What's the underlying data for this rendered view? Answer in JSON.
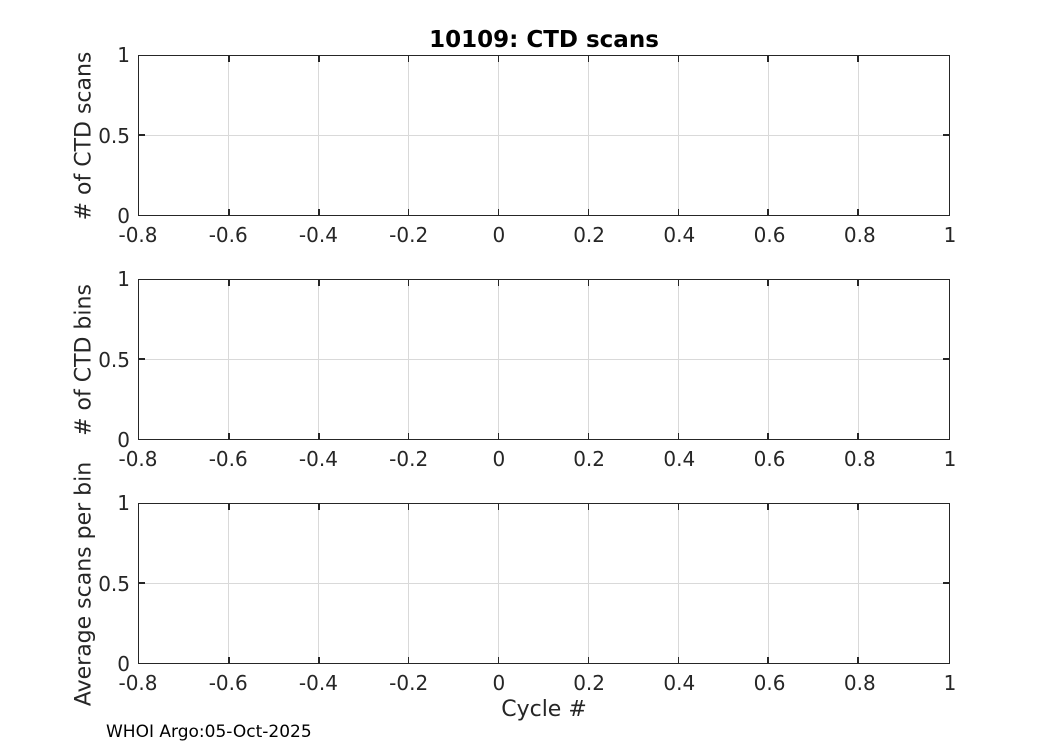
{
  "figure": {
    "title": "10109: CTD scans",
    "xlabel": "Cycle #",
    "footer": "WHOI Argo:05-Oct-2025",
    "colors": {
      "background": "#ffffff",
      "axis": "#262626",
      "grid": "#d9d9d9",
      "title": "#000000"
    }
  },
  "chart_data": [
    {
      "type": "line",
      "title": "10109: CTD scans",
      "ylabel": "# of CTD scans",
      "xlabel": "",
      "xlim": [
        -0.8,
        1
      ],
      "ylim": [
        0,
        1
      ],
      "xtick_values": [
        -0.8,
        -0.6,
        -0.4,
        -0.2,
        0,
        0.2,
        0.4,
        0.6,
        0.8,
        1
      ],
      "xtick_labels": [
        "-0.8",
        "-0.6",
        "-0.4",
        "-0.2",
        "0",
        "0.2",
        "0.4",
        "0.6",
        "0.8",
        "1"
      ],
      "ytick_values": [
        0,
        0.5,
        1
      ],
      "ytick_labels": [
        "0",
        "0.5",
        "1"
      ],
      "grid": true,
      "legend": null,
      "series": []
    },
    {
      "type": "line",
      "title": "",
      "ylabel": "# of CTD bins",
      "xlabel": "",
      "xlim": [
        -0.8,
        1
      ],
      "ylim": [
        0,
        1
      ],
      "xtick_values": [
        -0.8,
        -0.6,
        -0.4,
        -0.2,
        0,
        0.2,
        0.4,
        0.6,
        0.8,
        1
      ],
      "xtick_labels": [
        "-0.8",
        "-0.6",
        "-0.4",
        "-0.2",
        "0",
        "0.2",
        "0.4",
        "0.6",
        "0.8",
        "1"
      ],
      "ytick_values": [
        0,
        0.5,
        1
      ],
      "ytick_labels": [
        "0",
        "0.5",
        "1"
      ],
      "grid": true,
      "legend": null,
      "series": []
    },
    {
      "type": "line",
      "title": "",
      "ylabel": "Average scans per bin",
      "xlabel": "Cycle #",
      "xlim": [
        -0.8,
        1
      ],
      "ylim": [
        0,
        1
      ],
      "xtick_values": [
        -0.8,
        -0.6,
        -0.4,
        -0.2,
        0,
        0.2,
        0.4,
        0.6,
        0.8,
        1
      ],
      "xtick_labels": [
        "-0.8",
        "-0.6",
        "-0.4",
        "-0.2",
        "0",
        "0.2",
        "0.4",
        "0.6",
        "0.8",
        "1"
      ],
      "ytick_values": [
        0,
        0.5,
        1
      ],
      "ytick_labels": [
        "0",
        "0.5",
        "1"
      ],
      "grid": true,
      "legend": null,
      "series": []
    }
  ]
}
